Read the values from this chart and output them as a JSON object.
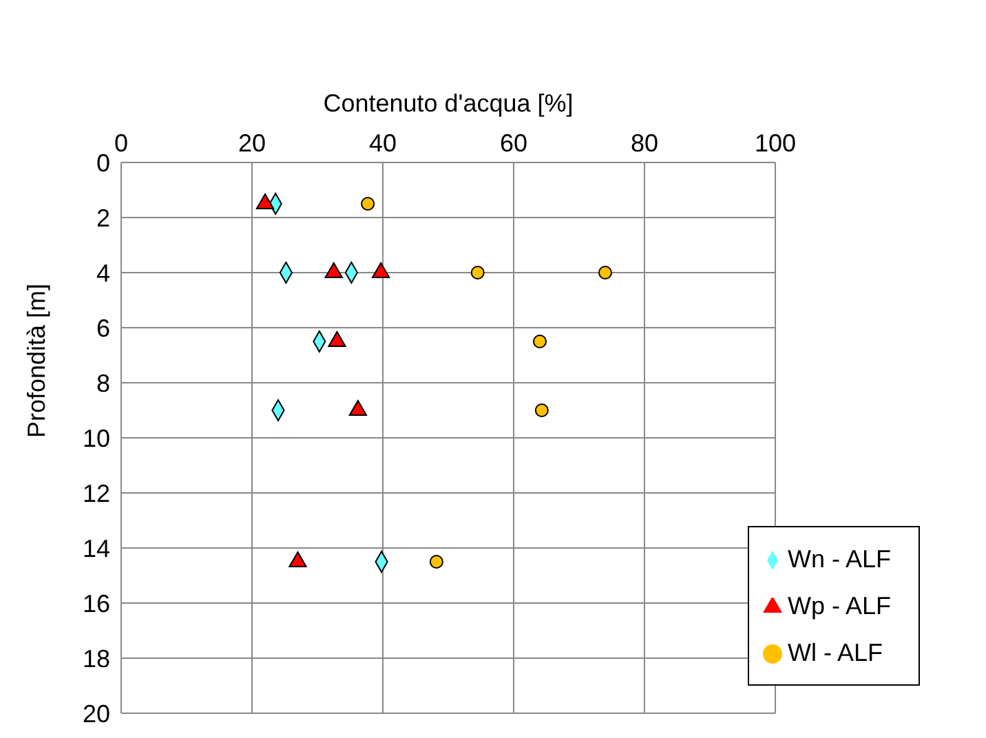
{
  "chart_data": {
    "type": "scatter",
    "xlabel": "Contenuto d'acqua [%]",
    "ylabel": "Profondità [m]",
    "xlim": [
      0,
      100
    ],
    "xticks": [
      0,
      20,
      40,
      60,
      80,
      100
    ],
    "ylim": [
      20,
      0
    ],
    "yticks": [
      0,
      2,
      4,
      6,
      8,
      10,
      12,
      14,
      16,
      18,
      20
    ],
    "grid": true,
    "legend": "bottom right",
    "series": [
      {
        "name": "Wn - ALF",
        "color": "#66ffff",
        "marker": "diamond",
        "x": [
          23.6,
          25.2,
          35.2,
          30.3,
          24,
          39.8
        ],
        "values": [
          1.5,
          4,
          4,
          6.5,
          9,
          14.5
        ]
      },
      {
        "name": "Wp - ALF",
        "color": "#ff0000",
        "marker": "triangle",
        "x": [
          22,
          32.5,
          39.7,
          33,
          36.2,
          27
        ],
        "values": [
          1.5,
          4,
          4,
          6.5,
          9,
          14.5
        ]
      },
      {
        "name": "Wl - ALF",
        "color": "#ffc000",
        "marker": "circle",
        "x": [
          37.7,
          54.5,
          74,
          64,
          64.3,
          48.2
        ],
        "values": [
          1.5,
          4,
          4,
          6.5,
          9,
          14.5
        ]
      }
    ]
  }
}
